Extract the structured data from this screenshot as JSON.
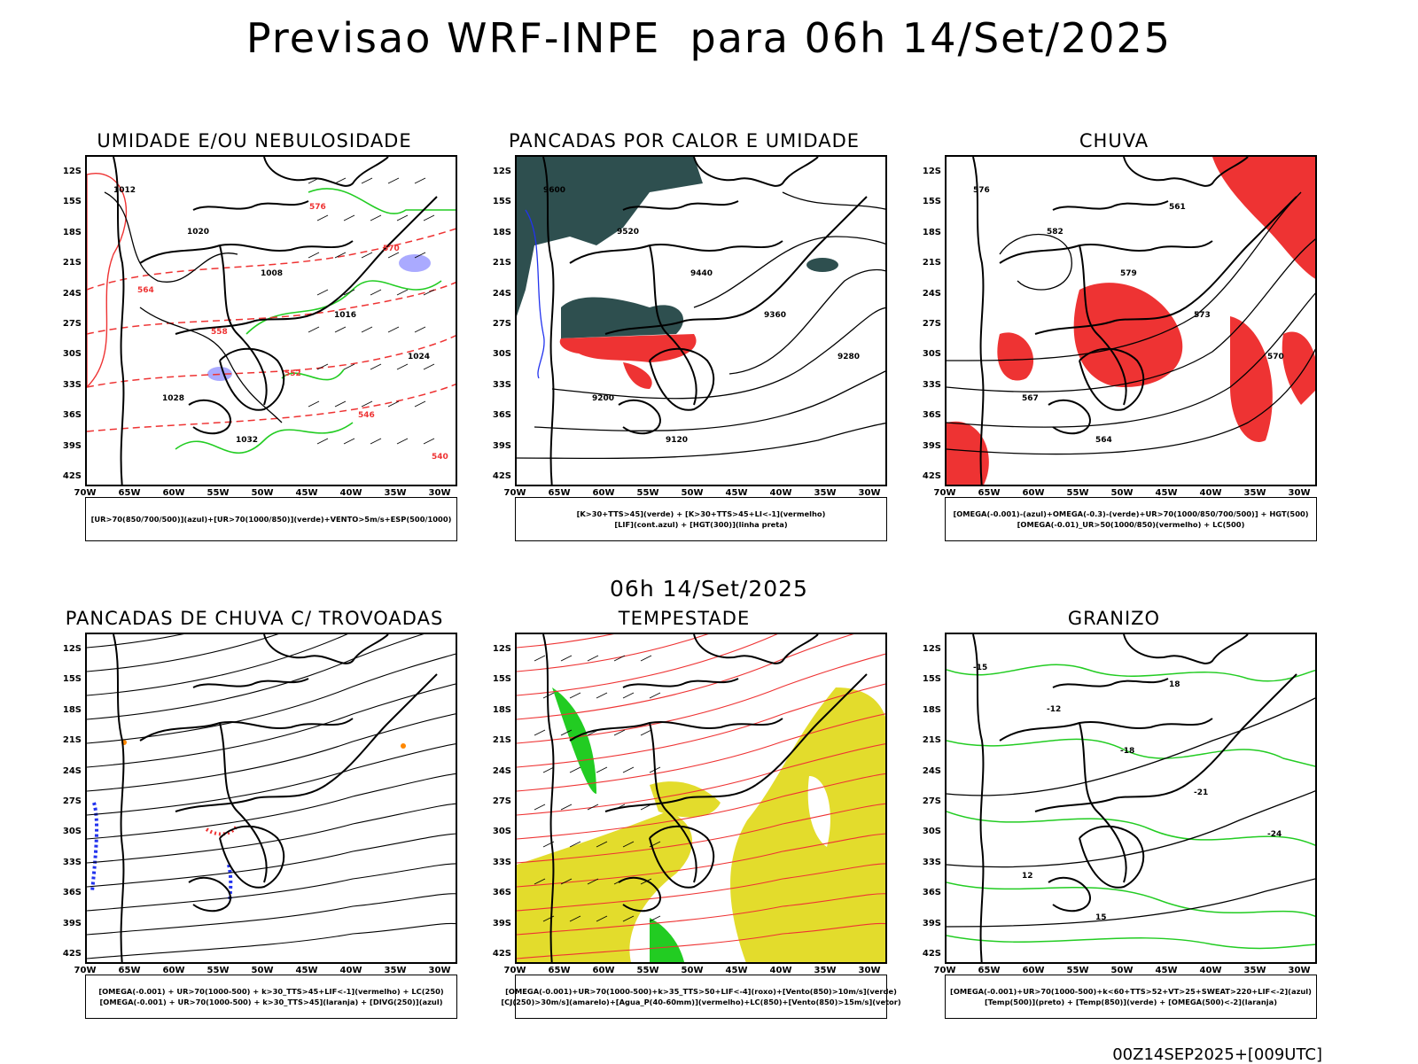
{
  "title": "Previsao WRF-INPE  para 06h 14/Set/2025",
  "mid_title": "06h 14/Set/2025",
  "footer": "00Z14SEP2025+[009UTC]",
  "lat_labels": [
    "12S",
    "15S",
    "18S",
    "21S",
    "24S",
    "27S",
    "30S",
    "33S",
    "36S",
    "39S",
    "42S"
  ],
  "lon_labels": [
    "70W",
    "65W",
    "60W",
    "55W",
    "50W",
    "45W",
    "40W",
    "35W",
    "30W"
  ],
  "colors": {
    "black": "#000000",
    "red": "#ee3333",
    "green": "#22cc22",
    "blue": "#2233ee",
    "teal": "#2e4f4f",
    "yellow": "#e3dc2c",
    "purple": "#aaaaff",
    "orange": "#ff8800"
  },
  "panels": [
    {
      "title": "UMIDADE E/OU NEBULOSIDADE",
      "legend": [
        "[UR>70(850/700/500)](azul)+[UR>70(1000/850)](verde)+VENTO>5m/s+ESP(500/1000)"
      ],
      "contour_labels": [
        "1012",
        "1020",
        "1008",
        "1016",
        "1024",
        "1028",
        "1032",
        "576",
        "570",
        "564",
        "558",
        "552",
        "546",
        "540"
      ]
    },
    {
      "title": "PANCADAS POR CALOR E UMIDADE",
      "legend": [
        "[K>30+TTS>45](verde) + [K>30+TTS>45+LI<-1](vermelho)",
        "[LIF](cont.azul) + [HGT(300)](linha preta)"
      ],
      "contour_labels": [
        "9600",
        "9520",
        "9440",
        "9360",
        "9280",
        "9200",
        "9120"
      ]
    },
    {
      "title": "CHUVA",
      "legend": [
        "[OMEGA(-0.001)-(azul)+OMEGA(-0.3)-(verde)+UR>70(1000/850/700/500)] + HGT(500)",
        "[OMEGA(-0.01)_UR>50(1000/850)(vermelho) + LC(500)"
      ],
      "contour_labels": [
        "576",
        "582",
        "579",
        "573",
        "570",
        "567",
        "564",
        "561"
      ]
    },
    {
      "title": "PANCADAS DE CHUVA C/ TROVOADAS",
      "legend": [
        "[OMEGA(-0.001) + UR>70(1000-500) + k>30_TTS>45+LIF<-1](vermelho) + LC(250)",
        "[OMEGA(-0.001) + UR>70(1000-500) + k>30_TTS>45](laranja) + [DIVG(250)](azul)"
      ],
      "contour_labels": []
    },
    {
      "title": "TEMPESTADE",
      "legend": [
        "[OMEGA(-0.001)+UR>70(1000-500)+k>35_TTS>50+LIF<-4](roxo)+[Vento(850)>10m/s](verde)",
        "[CJ(250)>30m/s](amarelo)+[Agua_P(40-60mm)](vermelho)+LC(850)+[Vento(850)>15m/s](vetor)"
      ],
      "contour_labels": []
    },
    {
      "title": "GRANIZO",
      "legend": [
        "[OMEGA(-0.001)+UR>70(1000-500)+k<60+TTS>52+VT>25+SWEAT>220+LIF<-2](azul)",
        "[Temp(500)](preto) + [Temp(850)](verde) + [OMEGA(500)<-2](laranja)"
      ],
      "contour_labels": [
        "-15",
        "-12",
        "-18",
        "-21",
        "-24",
        "12",
        "15",
        "18"
      ]
    }
  ]
}
